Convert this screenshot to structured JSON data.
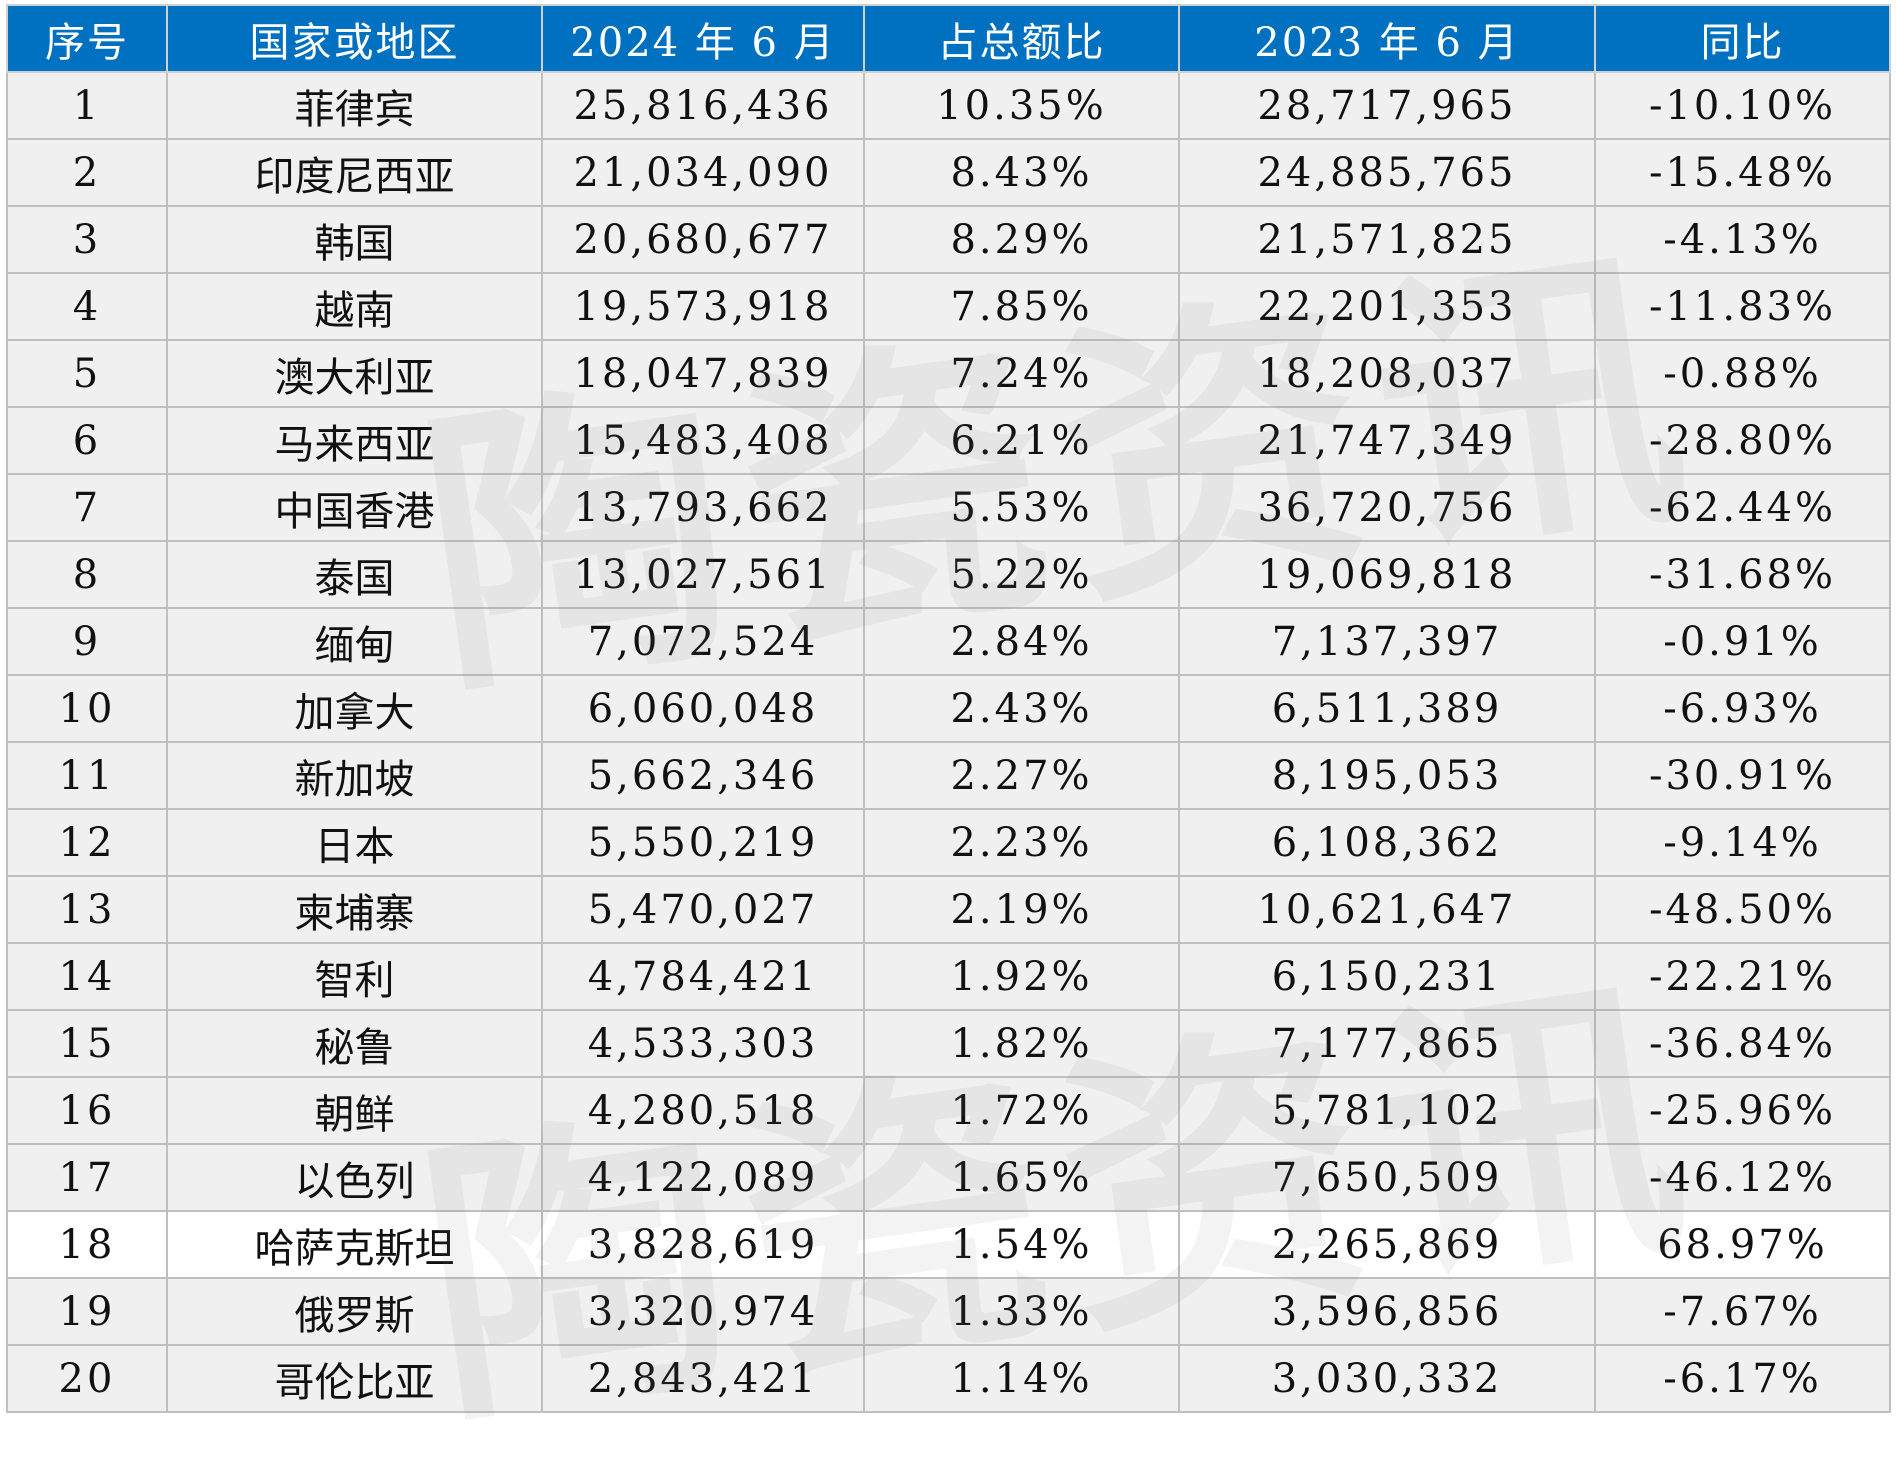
{
  "watermark": "陶瓷资讯",
  "headers": [
    "序号",
    "国家或地区",
    "2024 年 6 月",
    "占总额比",
    "2023 年 6 月",
    "同比"
  ],
  "highlight_row": 18,
  "colors": {
    "header_bg": "#0070c0",
    "row_bg": "#f0f0f0",
    "highlight_bg": "#ffffff",
    "border": "#bfbfbf"
  },
  "rows": [
    [
      "1",
      "菲律宾",
      "25,816,436",
      "10.35%",
      "28,717,965",
      "-10.10%"
    ],
    [
      "2",
      "印度尼西亚",
      "21,034,090",
      "8.43%",
      "24,885,765",
      "-15.48%"
    ],
    [
      "3",
      "韩国",
      "20,680,677",
      "8.29%",
      "21,571,825",
      "-4.13%"
    ],
    [
      "4",
      "越南",
      "19,573,918",
      "7.85%",
      "22,201,353",
      "-11.83%"
    ],
    [
      "5",
      "澳大利亚",
      "18,047,839",
      "7.24%",
      "18,208,037",
      "-0.88%"
    ],
    [
      "6",
      "马来西亚",
      "15,483,408",
      "6.21%",
      "21,747,349",
      "-28.80%"
    ],
    [
      "7",
      "中国香港",
      "13,793,662",
      "5.53%",
      "36,720,756",
      "-62.44%"
    ],
    [
      "8",
      "泰国",
      "13,027,561",
      "5.22%",
      "19,069,818",
      "-31.68%"
    ],
    [
      "9",
      "缅甸",
      "7,072,524",
      "2.84%",
      "7,137,397",
      "-0.91%"
    ],
    [
      "10",
      "加拿大",
      "6,060,048",
      "2.43%",
      "6,511,389",
      "-6.93%"
    ],
    [
      "11",
      "新加坡",
      "5,662,346",
      "2.27%",
      "8,195,053",
      "-30.91%"
    ],
    [
      "12",
      "日本",
      "5,550,219",
      "2.23%",
      "6,108,362",
      "-9.14%"
    ],
    [
      "13",
      "柬埔寨",
      "5,470,027",
      "2.19%",
      "10,621,647",
      "-48.50%"
    ],
    [
      "14",
      "智利",
      "4,784,421",
      "1.92%",
      "6,150,231",
      "-22.21%"
    ],
    [
      "15",
      "秘鲁",
      "4,533,303",
      "1.82%",
      "7,177,865",
      "-36.84%"
    ],
    [
      "16",
      "朝鲜",
      "4,280,518",
      "1.72%",
      "5,781,102",
      "-25.96%"
    ],
    [
      "17",
      "以色列",
      "4,122,089",
      "1.65%",
      "7,650,509",
      "-46.12%"
    ],
    [
      "18",
      "哈萨克斯坦",
      "3,828,619",
      "1.54%",
      "2,265,869",
      "68.97%"
    ],
    [
      "19",
      "俄罗斯",
      "3,320,974",
      "1.33%",
      "3,596,856",
      "-7.67%"
    ],
    [
      "20",
      "哥伦比亚",
      "2,843,421",
      "1.14%",
      "3,030,332",
      "-6.17%"
    ]
  ]
}
